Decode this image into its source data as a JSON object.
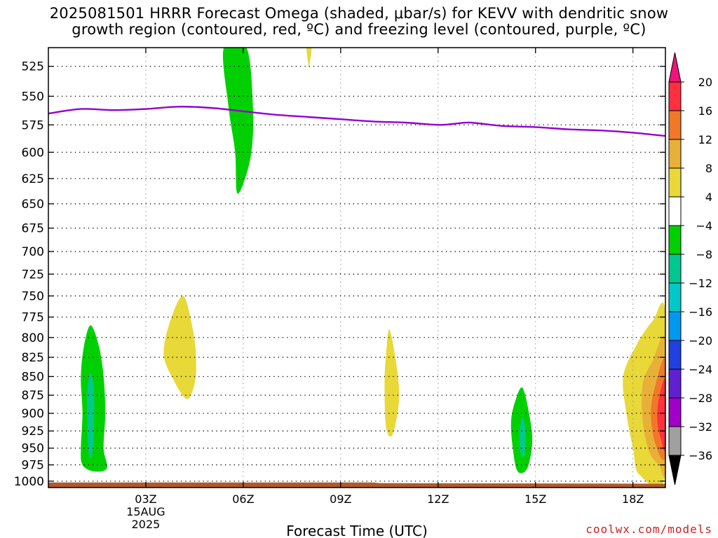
{
  "title_line1": "2025081501 HRRR Forecast Omega (shaded, μbar/s) for KEVV with dendritic snow",
  "title_line2": "growth region (contoured, red, ºC) and freezing level (contoured, purple, ºC)",
  "credit": "coolwx.com/models",
  "chart_data": {
    "type": "heatmap",
    "xlabel": "Forecast Time (UTC)",
    "x_ticks": [
      {
        "hour": 3,
        "label": "03Z",
        "sub": [
          "15AUG",
          "2025"
        ]
      },
      {
        "hour": 6,
        "label": "06Z"
      },
      {
        "hour": 9,
        "label": "09Z"
      },
      {
        "hour": 12,
        "label": "12Z"
      },
      {
        "hour": 15,
        "label": "15Z"
      },
      {
        "hour": 18,
        "label": "18Z"
      }
    ],
    "xlim": [
      0,
      19
    ],
    "y_ticks": [
      525,
      550,
      575,
      600,
      625,
      650,
      675,
      700,
      725,
      750,
      775,
      800,
      825,
      850,
      875,
      900,
      925,
      950,
      975,
      1000
    ],
    "ylim": [
      1010,
      510
    ],
    "y_scale": "log-pressure",
    "grid": true,
    "colorbar": {
      "labels": [
        "20",
        "16",
        "12",
        "8",
        "4",
        "−4",
        "−8",
        "−12",
        "−16",
        "−20",
        "−24",
        "−28",
        "−32",
        "−36"
      ],
      "colors": [
        "#ff3040",
        "#f07828",
        "#e8b038",
        "#e8d838",
        "#ffffff",
        "#00d000",
        "#00c890",
        "#00c8c8",
        "#0098f0",
        "#2040e0",
        "#6020d0",
        "#a000c8",
        "#a0a0a0"
      ],
      "top_arrow_color": "#f01478",
      "bottom_arrow_color": "#000000"
    },
    "freezing_level": {
      "color": "#9400d3",
      "points": [
        [
          0,
          565
        ],
        [
          1,
          561
        ],
        [
          2,
          562
        ],
        [
          3,
          561
        ],
        [
          4,
          559
        ],
        [
          5,
          560
        ],
        [
          6,
          563
        ],
        [
          7,
          566
        ],
        [
          8,
          568
        ],
        [
          9,
          570
        ],
        [
          10,
          572
        ],
        [
          11,
          573
        ],
        [
          12,
          575
        ],
        [
          12.5,
          574
        ],
        [
          13,
          573
        ],
        [
          14,
          576
        ],
        [
          15,
          577
        ],
        [
          16,
          579
        ],
        [
          17,
          580
        ],
        [
          18,
          582
        ],
        [
          19,
          585
        ]
      ]
    },
    "omega_regions": [
      {
        "level": "-8 to -4",
        "color": "#00d000",
        "points": [
          [
            5.4,
            510
          ],
          [
            6.1,
            510
          ],
          [
            6.3,
            560
          ],
          [
            6.25,
            600
          ],
          [
            6.0,
            630
          ],
          [
            5.8,
            638
          ],
          [
            5.75,
            600
          ],
          [
            5.55,
            560
          ]
        ]
      },
      {
        "level": "4 to 8",
        "color": "#e8d838",
        "points": [
          [
            7.95,
            510
          ],
          [
            8.1,
            510
          ],
          [
            8.05,
            522
          ],
          [
            8.02,
            525
          ]
        ]
      },
      {
        "level": "-8 to -4",
        "color": "#00d000",
        "points": [
          [
            1.3,
            785
          ],
          [
            1.55,
            810
          ],
          [
            1.7,
            850
          ],
          [
            1.75,
            900
          ],
          [
            1.7,
            950
          ],
          [
            1.8,
            980
          ],
          [
            1.4,
            985
          ],
          [
            1.05,
            975
          ],
          [
            1.0,
            950
          ],
          [
            1.05,
            900
          ],
          [
            1.0,
            850
          ],
          [
            1.1,
            810
          ]
        ]
      },
      {
        "level": "-12 to -8",
        "color": "#00c890",
        "points": [
          [
            1.3,
            845
          ],
          [
            1.4,
            870
          ],
          [
            1.4,
            920
          ],
          [
            1.35,
            960
          ],
          [
            1.25,
            960
          ],
          [
            1.2,
            920
          ],
          [
            1.2,
            870
          ]
        ]
      },
      {
        "level": "4 to 8",
        "color": "#e8d838",
        "points": [
          [
            4.15,
            750
          ],
          [
            4.45,
            790
          ],
          [
            4.55,
            830
          ],
          [
            4.5,
            860
          ],
          [
            4.25,
            880
          ],
          [
            3.8,
            850
          ],
          [
            3.55,
            820
          ],
          [
            3.75,
            780
          ]
        ]
      },
      {
        "level": "4 to 8",
        "color": "#e8d838",
        "points": [
          [
            10.5,
            790
          ],
          [
            10.7,
            830
          ],
          [
            10.8,
            880
          ],
          [
            10.6,
            930
          ],
          [
            10.4,
            920
          ],
          [
            10.35,
            860
          ],
          [
            10.4,
            820
          ]
        ]
      },
      {
        "level": "-8 to -4",
        "color": "#00d000",
        "points": [
          [
            14.6,
            865
          ],
          [
            14.8,
            900
          ],
          [
            14.9,
            940
          ],
          [
            14.75,
            980
          ],
          [
            14.45,
            985
          ],
          [
            14.3,
            950
          ],
          [
            14.25,
            910
          ],
          [
            14.4,
            880
          ]
        ]
      },
      {
        "level": "-12 to -8",
        "color": "#00c890",
        "points": [
          [
            14.6,
            905
          ],
          [
            14.7,
            930
          ],
          [
            14.65,
            960
          ],
          [
            14.55,
            960
          ],
          [
            14.5,
            930
          ]
        ]
      },
      {
        "level": "4 to 8",
        "color": "#e8d838",
        "points": [
          [
            19,
            770
          ],
          [
            18.6,
            780
          ],
          [
            18.1,
            810
          ],
          [
            17.7,
            850
          ],
          [
            17.8,
            900
          ],
          [
            18.0,
            950
          ],
          [
            18.2,
            990
          ],
          [
            19,
            990
          ]
        ]
      },
      {
        "level": "8 to 12",
        "color": "#e8b038",
        "points": [
          [
            19,
            805
          ],
          [
            18.6,
            830
          ],
          [
            18.3,
            860
          ],
          [
            18.3,
            910
          ],
          [
            18.5,
            955
          ],
          [
            18.8,
            975
          ],
          [
            19,
            980
          ]
        ]
      },
      {
        "level": "12 to 16",
        "color": "#f07828",
        "points": [
          [
            19,
            830
          ],
          [
            18.7,
            860
          ],
          [
            18.55,
            900
          ],
          [
            18.7,
            945
          ],
          [
            19,
            960
          ]
        ]
      },
      {
        "level": "16 to 20",
        "color": "#ff3040",
        "points": [
          [
            19,
            855
          ],
          [
            18.8,
            880
          ],
          [
            18.75,
            910
          ],
          [
            18.85,
            935
          ],
          [
            19,
            950
          ]
        ]
      }
    ],
    "ground": {
      "color": "#b05a2c",
      "points": [
        [
          0,
          1002
        ],
        [
          10,
          1002
        ],
        [
          10.2,
          1003
        ],
        [
          19,
          1004
        ]
      ]
    }
  }
}
